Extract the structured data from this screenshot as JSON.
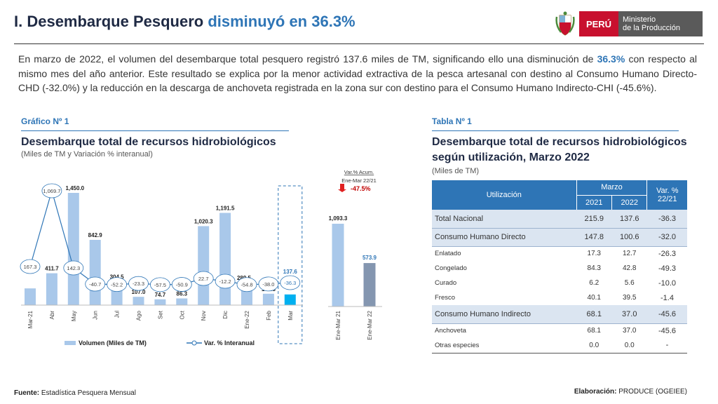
{
  "header": {
    "title_main": "I. Desembarque Pesquero ",
    "title_hl": "disminuyó en 36.3%",
    "logo_peru": "PERÚ",
    "logo_min_1": "Ministerio",
    "logo_min_2": "de la Producción"
  },
  "intro": {
    "p1": "En marzo de 2022, el volumen del desembarque total pesquero registró 137.6 miles de TM, significando ello una disminución de ",
    "p1_hl": "36.3%",
    "p2": " con respecto al mismo mes del año anterior. Este resultado se explica por la menor actividad extractiva de la pesca artesanal con destino al Consumo Humano Directo-CHD (-32.0%) y la reducción en la descarga de anchoveta registrada en la zona sur con destino para el Consumo Humano Indirecto-CHI (-45.6%)."
  },
  "chart_section": {
    "label": "Gráfico Nº 1",
    "title": "Desembarque total de recursos hidrobiológicos",
    "subtitle": "(Miles de TM y Variación % interanual)"
  },
  "table_section": {
    "label": "Tabla Nº 1",
    "title_1": "Desembarque total de recursos hidrobiológicos",
    "title_2": "según utilización, Marzo 2022",
    "subtitle": "(Miles de TM)"
  },
  "chart_data": [
    {
      "type": "bar",
      "categories": [
        "Mar-21",
        "Abr",
        "May",
        "Jun",
        "Jul",
        "Ago",
        "Set",
        "Oct",
        "Nov",
        "Dic",
        "Ene-22",
        "Feb",
        "Mar"
      ],
      "series": [
        {
          "name": "Volumen (Miles de TM)",
          "type": "bar",
          "values": [
            215.9,
            411.7,
            1450.0,
            842.9,
            304.5,
            107.0,
            74.7,
            86.3,
            1020.3,
            1191.5,
            289.5,
            146.8,
            137.6
          ]
        },
        {
          "name": "Var. % Interanual",
          "type": "line",
          "values": [
            167.3,
            1069.7,
            142.3,
            -40.7,
            -52.2,
            -23.3,
            -57.5,
            -50.9,
            22.7,
            -12.2,
            -54.8,
            -38.0,
            -36.3
          ]
        }
      ],
      "value_labels": [
        "215.9",
        "411.7",
        "1,450.0",
        "842.9",
        "304.5",
        "107.0",
        "74.7",
        "86.3",
        "1,020.3",
        "1,191.5",
        "289.5",
        "146.8",
        "137.6"
      ],
      "var_labels": [
        "167.3",
        "1,069.7",
        "142.3",
        "-40.7",
        "-52.2",
        "-23.3",
        "-57.5",
        "-50.9",
        "22.7",
        "-12.2",
        "-54.8",
        "-38.0",
        "-36.3"
      ],
      "legend": [
        "Volumen (Miles de TM)",
        "Var. % Interanual"
      ],
      "legend_position": "bottom",
      "colors": {
        "bar": "#a9c8ea",
        "bar_last": "#00b0f0",
        "line": "#2e75b6",
        "accent": "#2e75b6"
      }
    },
    {
      "type": "bar",
      "categories": [
        "Ene-Mar 21",
        "Ene-Mar 22"
      ],
      "values": [
        1093.3,
        573.9
      ],
      "value_labels": [
        "1,093.3",
        "573.9"
      ],
      "annotation_1": "Var.% Acum.",
      "annotation_2": "Ene-Mar 22/21",
      "annotation_value": "-47.5%",
      "colors": {
        "bar_1": "#a9c8ea",
        "bar_2": "#8496b0",
        "label_2": "#2e75b6",
        "arrow": "#e02020"
      }
    }
  ],
  "table": {
    "h_util": "Utilización",
    "h_marzo": "Marzo",
    "h_var_1": "Var. %",
    "h_var_2": "22/21",
    "h_2021": "2021",
    "h_2022": "2022",
    "rows": [
      {
        "label": "Total Nacional",
        "v2021": "215.9",
        "v2022": "137.6",
        "var": "-36.3",
        "hi": true
      },
      {
        "label": "Consumo Humano Directo",
        "v2021": "147.8",
        "v2022": "100.6",
        "var": "-32.0",
        "hi": true
      },
      {
        "label": "Enlatado",
        "v2021": "17.3",
        "v2022": "12.7",
        "var": "-26.3",
        "hi": false
      },
      {
        "label": "Congelado",
        "v2021": "84.3",
        "v2022": "42.8",
        "var": "-49.3",
        "hi": false
      },
      {
        "label": "Curado",
        "v2021": "6.2",
        "v2022": "5.6",
        "var": "-10.0",
        "hi": false
      },
      {
        "label": "Fresco",
        "v2021": "40.1",
        "v2022": "39.5",
        "var": "-1.4",
        "hi": false
      },
      {
        "label": "Consumo Humano Indirecto",
        "v2021": "68.1",
        "v2022": "37.0",
        "var": "-45.6",
        "hi": true
      },
      {
        "label": "Anchoveta",
        "v2021": "68.1",
        "v2022": "37.0",
        "var": "-45.6",
        "hi": false
      },
      {
        "label": "Otras especies",
        "v2021": "0.0",
        "v2022": "0.0",
        "var": "-",
        "hi": false
      }
    ]
  },
  "footer": {
    "fuente_label": "Fuente:",
    "fuente_text": " Estadística Pesquera Mensual",
    "elab_label": "Elaboración:",
    "elab_text": " PRODUCE (OGEIEE)"
  }
}
